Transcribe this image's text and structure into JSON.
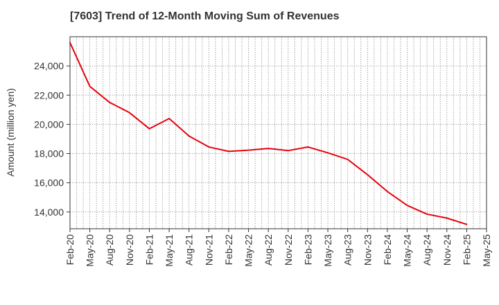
{
  "title": "[7603]  Trend of 12-Month Moving Sum of Revenues",
  "chart_data": {
    "type": "line",
    "title": "[7603]  Trend of 12-Month Moving Sum of Revenues",
    "xlabel": "",
    "ylabel": "Amount (million yen)",
    "x_ticks": [
      "Feb-20",
      "May-20",
      "Aug-20",
      "Nov-20",
      "Feb-21",
      "May-21",
      "Aug-21",
      "Nov-21",
      "Feb-22",
      "May-22",
      "Aug-22",
      "Nov-22",
      "Feb-23",
      "May-23",
      "Aug-23",
      "Nov-23",
      "Feb-24",
      "May-24",
      "Aug-24",
      "Nov-24",
      "Feb-25",
      "May-25"
    ],
    "y_ticks": [
      14000,
      16000,
      18000,
      20000,
      22000,
      24000
    ],
    "y_tick_labels": [
      "14,000",
      "16,000",
      "18,000",
      "20,000",
      "22,000",
      "24,000"
    ],
    "ylim": [
      12850,
      26000
    ],
    "grid": true,
    "line_color": "#e8000b",
    "series": [
      {
        "x": [
          "Feb-20",
          "May-20",
          "Aug-20",
          "Nov-20",
          "Feb-21",
          "May-21",
          "Aug-21",
          "Nov-21",
          "Feb-22",
          "May-22",
          "Aug-22",
          "Nov-22",
          "Feb-23",
          "May-23",
          "Aug-23",
          "Nov-23",
          "Feb-24",
          "May-24",
          "Aug-24",
          "Nov-24",
          "Feb-25"
        ],
        "values": [
          25600,
          22600,
          21500,
          20800,
          19700,
          20400,
          19200,
          18450,
          18150,
          18230,
          18350,
          18200,
          18450,
          18050,
          17600,
          16550,
          15400,
          14450,
          13850,
          13580,
          13150
        ]
      }
    ]
  }
}
